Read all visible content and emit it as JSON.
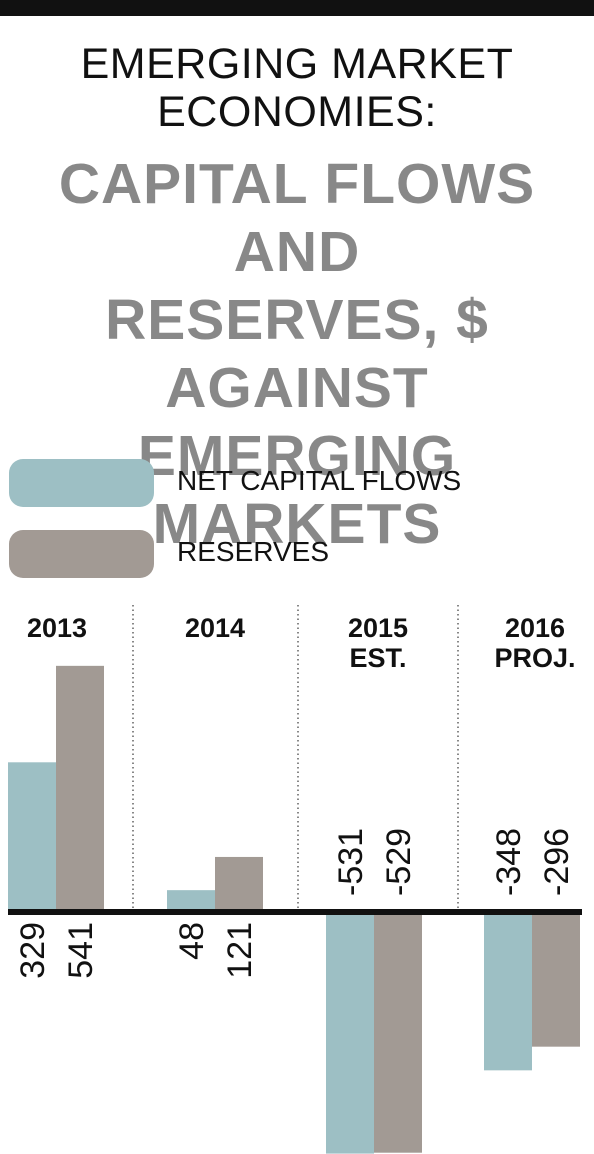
{
  "kicker": [
    "EMERGING MARKET",
    "ECONOMIES:"
  ],
  "headline": [
    "CAPITAL FLOWS AND",
    "RESERVES, $",
    "AGAINST EMERGING",
    "MARKETS"
  ],
  "legend": [
    {
      "label": "NET CAPITAL FLOWS",
      "color": "#9dbfc4"
    },
    {
      "label": "RESERVES",
      "color": "#a29a94"
    }
  ],
  "colors": {
    "title": "#888888",
    "axis": "#111111",
    "divider": "#555555"
  },
  "chart_data": {
    "type": "bar",
    "categories": [
      [
        "2013"
      ],
      [
        "2014"
      ],
      [
        "2015",
        "EST."
      ],
      [
        "2016",
        "PROJ."
      ]
    ],
    "series": [
      {
        "name": "NET CAPITAL FLOWS",
        "values": [
          329,
          48,
          -531,
          -348
        ]
      },
      {
        "name": "RESERVES",
        "values": [
          541,
          121,
          -529,
          -296
        ]
      }
    ],
    "value_labels": [
      [
        "329",
        "541"
      ],
      [
        "48",
        "121"
      ],
      [
        "-531",
        "-529"
      ],
      [
        "-348",
        "-296"
      ]
    ],
    "xlabel": "",
    "ylabel": "",
    "ylim": [
      -560,
      560
    ],
    "grid": false,
    "legend_position": "top"
  }
}
